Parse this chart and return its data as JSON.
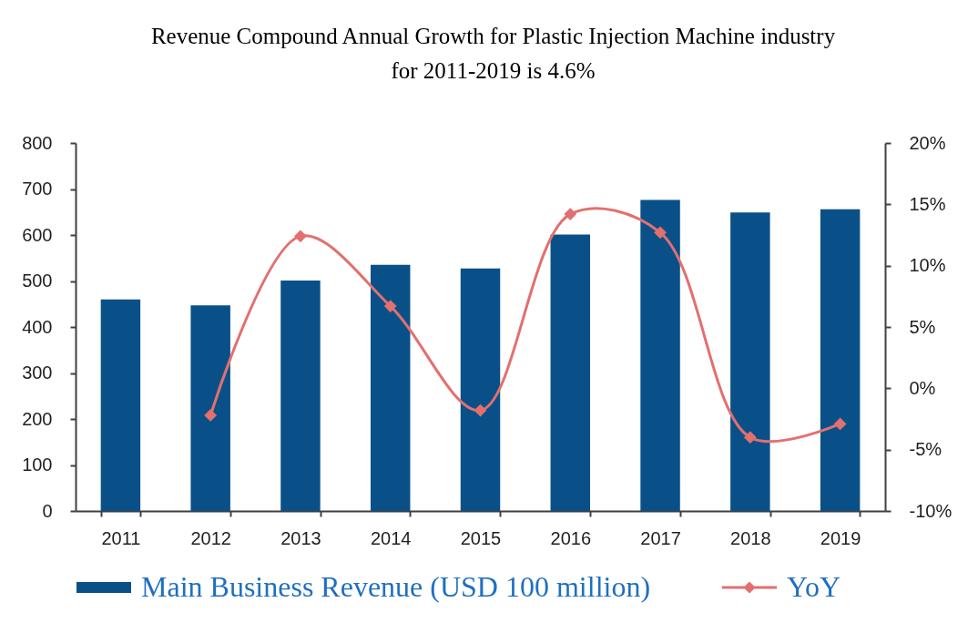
{
  "chart_data": {
    "type": "bar",
    "title": "Revenue Compound Annual Growth for Plastic Injection Machine industry\nfor 2011-2019 is 4.6%",
    "categories": [
      "2011",
      "2012",
      "2013",
      "2014",
      "2015",
      "2016",
      "2017",
      "2018",
      "2019"
    ],
    "series": [
      {
        "name": "Main Business Revenue (USD 100 million)",
        "color": "#0a5088",
        "values": [
          460,
          447,
          501,
          535,
          527,
          601,
          676,
          649,
          656
        ]
      },
      {
        "name": "YoY",
        "type": "line",
        "axis": "y2",
        "color": "#e2706f",
        "values": [
          null,
          -2.2,
          12.4,
          6.7,
          -1.8,
          14.2,
          12.7,
          -4.0,
          -2.9
        ]
      }
    ],
    "ylim": [
      0,
      800
    ],
    "yticks": [
      0,
      100,
      200,
      300,
      400,
      500,
      600,
      700,
      800
    ],
    "y2lim": [
      -10,
      20
    ],
    "y2ticks": [
      {
        "value": -10,
        "label": "-10%"
      },
      {
        "value": -5,
        "label": "-5%"
      },
      {
        "value": 0,
        "label": "0%"
      },
      {
        "value": 5,
        "label": "5%"
      },
      {
        "value": 10,
        "label": "10%"
      },
      {
        "value": 15,
        "label": "15%"
      },
      {
        "value": 20,
        "label": "20%"
      }
    ],
    "legend": "bottom",
    "marker": "diamond",
    "line_style": "solid"
  }
}
